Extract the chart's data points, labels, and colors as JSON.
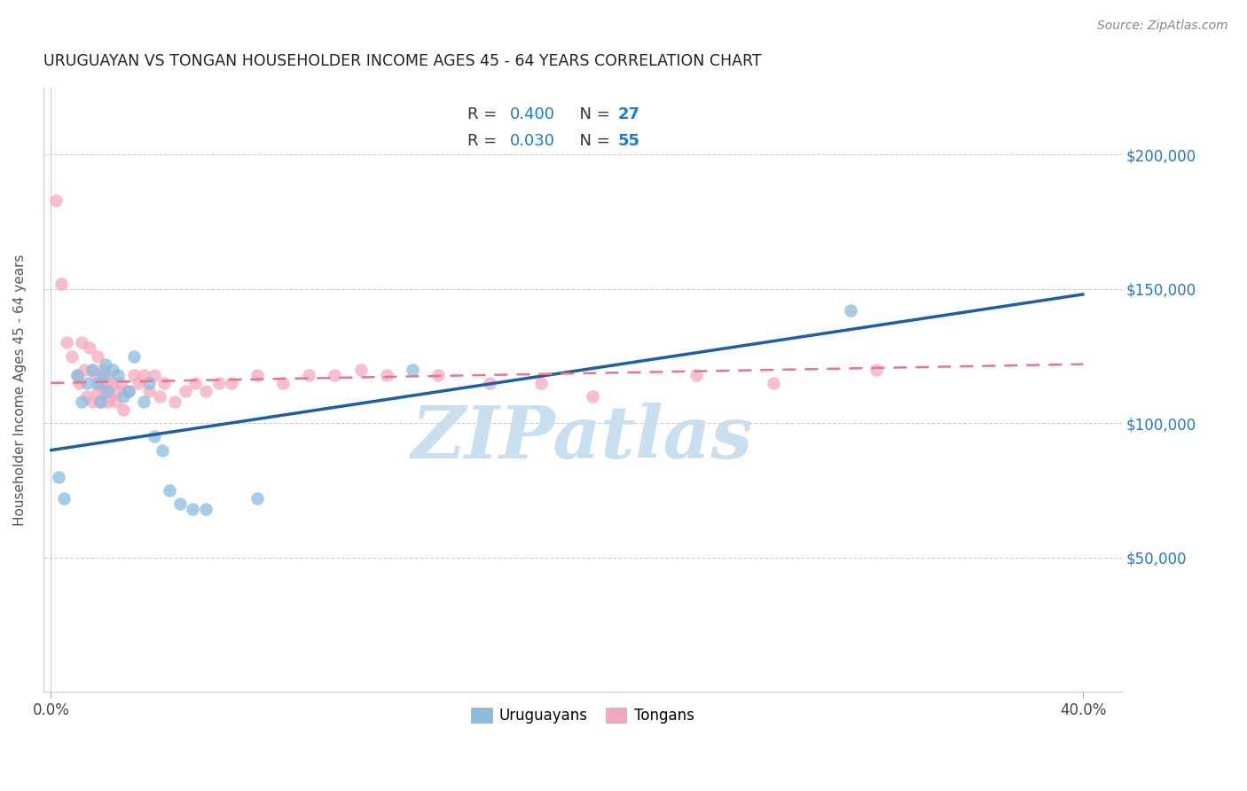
{
  "title": "URUGUAYAN VS TONGAN HOUSEHOLDER INCOME AGES 45 - 64 YEARS CORRELATION CHART",
  "source": "Source: ZipAtlas.com",
  "ylabel": "Householder Income Ages 45 - 64 years",
  "ytick_labels": [
    "$50,000",
    "$100,000",
    "$150,000",
    "$200,000"
  ],
  "ytick_vals": [
    50000,
    100000,
    150000,
    200000
  ],
  "ylim": [
    0,
    225000
  ],
  "xlim": [
    -0.003,
    0.415
  ],
  "uruguayan_color": "#89bde0",
  "tongan_color": "#f5a8bc",
  "uruguayan_line_color": "#1a5fa8",
  "tongan_line_color": "#e8758a",
  "legend_R_uruguayan": "R = 0.400",
  "legend_N_uruguayan": "N = 27",
  "legend_R_tongan": "R = 0.030",
  "legend_N_tongan": "N = 55",
  "legend_text_color": "#333333",
  "legend_val_color": "#1a7ad4",
  "legend_N_bold_color": "#1a7ad4",
  "watermark": "ZIPatlas",
  "watermark_color": "#c8dff0",
  "uruguayan_x": [
    0.003,
    0.005,
    0.01,
    0.012,
    0.014,
    0.016,
    0.018,
    0.019,
    0.02,
    0.021,
    0.022,
    0.024,
    0.026,
    0.028,
    0.03,
    0.032,
    0.036,
    0.038,
    0.04,
    0.043,
    0.046,
    0.05,
    0.055,
    0.06,
    0.08,
    0.14,
    0.31
  ],
  "uruguayan_y": [
    80000,
    72000,
    118000,
    108000,
    115000,
    120000,
    115000,
    108000,
    118000,
    122000,
    112000,
    120000,
    118000,
    110000,
    112000,
    125000,
    108000,
    115000,
    95000,
    90000,
    75000,
    70000,
    68000,
    68000,
    72000,
    120000,
    142000
  ],
  "tongan_x": [
    0.002,
    0.004,
    0.006,
    0.008,
    0.01,
    0.011,
    0.012,
    0.013,
    0.014,
    0.015,
    0.016,
    0.016,
    0.017,
    0.018,
    0.018,
    0.019,
    0.019,
    0.02,
    0.02,
    0.021,
    0.022,
    0.022,
    0.023,
    0.024,
    0.025,
    0.026,
    0.027,
    0.028,
    0.03,
    0.032,
    0.034,
    0.036,
    0.038,
    0.04,
    0.042,
    0.044,
    0.048,
    0.052,
    0.056,
    0.06,
    0.065,
    0.07,
    0.08,
    0.09,
    0.1,
    0.11,
    0.12,
    0.13,
    0.15,
    0.17,
    0.19,
    0.21,
    0.25,
    0.28,
    0.32
  ],
  "tongan_y": [
    183000,
    152000,
    130000,
    125000,
    118000,
    115000,
    130000,
    120000,
    110000,
    128000,
    120000,
    108000,
    118000,
    125000,
    112000,
    115000,
    108000,
    120000,
    112000,
    118000,
    115000,
    108000,
    110000,
    115000,
    108000,
    112000,
    115000,
    105000,
    112000,
    118000,
    115000,
    118000,
    112000,
    118000,
    110000,
    115000,
    108000,
    112000,
    115000,
    112000,
    115000,
    115000,
    118000,
    115000,
    118000,
    118000,
    120000,
    118000,
    118000,
    115000,
    115000,
    110000,
    118000,
    115000,
    120000
  ],
  "uru_trend_x": [
    0.0,
    0.4
  ],
  "uru_trend_y": [
    90000,
    148000
  ],
  "ton_trend_x": [
    0.0,
    0.4
  ],
  "ton_trend_y": [
    115000,
    122000
  ],
  "marker_size": 110,
  "marker_alpha": 0.75
}
